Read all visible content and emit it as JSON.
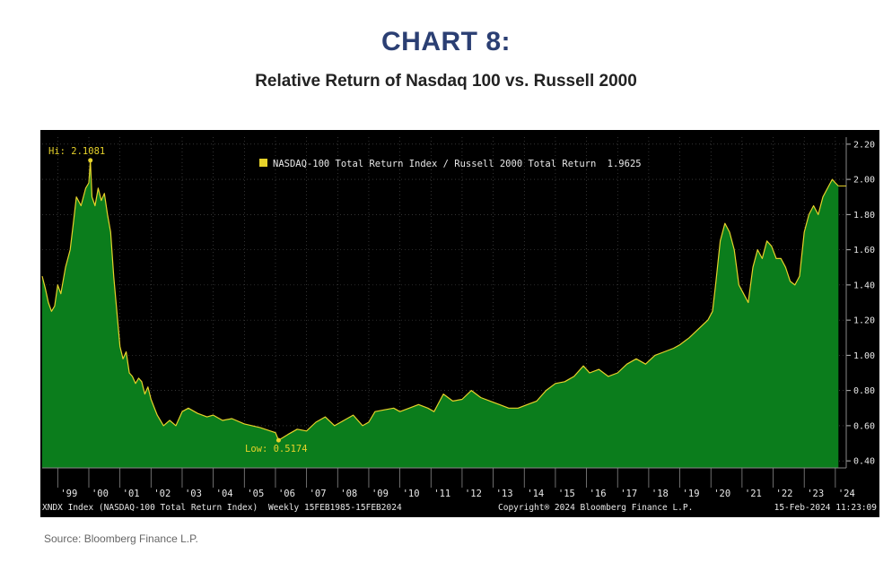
{
  "header": {
    "chart_number": "CHART 8:",
    "title": "Relative Return of Nasdaq 100 vs. Russell 2000"
  },
  "footer": {
    "source": "Source: Bloomberg Finance L.P."
  },
  "bloomberg": {
    "left_info": "XNDX Index (NASDAQ-100 Total Return Index)",
    "period": "Weekly 15FEB1985-15FEB2024",
    "copyright": "Copyright® 2024 Bloomberg Finance L.P.",
    "timestamp": "15-Feb-2024 11:23:09"
  },
  "colors": {
    "background": "#000000",
    "area_fill": "#0b7d1c",
    "line": "#e6d22a",
    "grid": "#555555",
    "text": "#e8e8e8",
    "title": "#2b3f73"
  },
  "chart_data": {
    "type": "area",
    "legend": {
      "label": "NASDAQ-100 Total Return Index / Russell 2000 Total Return",
      "last_value": "1.9625",
      "position": "top-center"
    },
    "annotations": {
      "high_label": "Hi: 2.1081",
      "high": {
        "x": 2000.05,
        "y": 2.1081
      },
      "low_label": "Low: 0.5174",
      "low": {
        "x": 2006.1,
        "y": 0.5174
      }
    },
    "x_range": [
      1998.5,
      2024.35
    ],
    "y_range": [
      0.36,
      2.24
    ],
    "y_ticks": [
      "0.40",
      "0.60",
      "0.80",
      "1.00",
      "1.20",
      "1.40",
      "1.60",
      "1.80",
      "2.00",
      "2.20"
    ],
    "y_tick_values": [
      0.4,
      0.6,
      0.8,
      1.0,
      1.2,
      1.4,
      1.6,
      1.8,
      2.0,
      2.2
    ],
    "x_ticks": [
      "'99",
      "'00",
      "'01",
      "'02",
      "'03",
      "'04",
      "'05",
      "'06",
      "'07",
      "'08",
      "'09",
      "'10",
      "'11",
      "'12",
      "'13",
      "'14",
      "'15",
      "'16",
      "'17",
      "'18",
      "'19",
      "'20",
      "'21",
      "'22",
      "'23",
      "'24"
    ],
    "x_tick_values": [
      1999,
      2000,
      2001,
      2002,
      2003,
      2004,
      2005,
      2006,
      2007,
      2008,
      2009,
      2010,
      2011,
      2012,
      2013,
      2014,
      2015,
      2016,
      2017,
      2018,
      2019,
      2020,
      2021,
      2022,
      2023,
      2024
    ],
    "grid": true,
    "y_axis_side": "right",
    "series": [
      {
        "name": "NASDAQ-100 Total Return Index / Russell 2000 Total Return",
        "x": [
          1998.5,
          1998.6,
          1998.7,
          1998.8,
          1998.9,
          1999.0,
          1999.1,
          1999.25,
          1999.4,
          1999.5,
          1999.6,
          1999.75,
          1999.9,
          2000.0,
          2000.05,
          2000.1,
          2000.2,
          2000.3,
          2000.4,
          2000.5,
          2000.6,
          2000.7,
          2000.8,
          2000.9,
          2001.0,
          2001.1,
          2001.2,
          2001.3,
          2001.4,
          2001.5,
          2001.6,
          2001.7,
          2001.8,
          2001.9,
          2002.0,
          2002.2,
          2002.4,
          2002.6,
          2002.8,
          2003.0,
          2003.2,
          2003.5,
          2003.8,
          2004.0,
          2004.3,
          2004.6,
          2005.0,
          2005.5,
          2006.0,
          2006.1,
          2006.4,
          2006.7,
          2007.0,
          2007.3,
          2007.6,
          2007.9,
          2008.2,
          2008.5,
          2008.8,
          2009.0,
          2009.2,
          2009.5,
          2009.8,
          2010.0,
          2010.3,
          2010.6,
          2010.9,
          2011.1,
          2011.4,
          2011.7,
          2012.0,
          2012.3,
          2012.6,
          2012.9,
          2013.2,
          2013.5,
          2013.8,
          2014.1,
          2014.4,
          2014.7,
          2015.0,
          2015.3,
          2015.6,
          2015.9,
          2016.1,
          2016.4,
          2016.7,
          2017.0,
          2017.3,
          2017.6,
          2017.9,
          2018.2,
          2018.5,
          2018.8,
          2019.0,
          2019.3,
          2019.6,
          2019.9,
          2020.05,
          2020.15,
          2020.3,
          2020.45,
          2020.6,
          2020.75,
          2020.9,
          2021.05,
          2021.2,
          2021.35,
          2021.5,
          2021.65,
          2021.8,
          2021.95,
          2022.1,
          2022.25,
          2022.4,
          2022.55,
          2022.7,
          2022.85,
          2023.0,
          2023.15,
          2023.3,
          2023.45,
          2023.6,
          2023.75,
          2023.9,
          2024.0,
          2024.1
        ],
        "values": [
          1.45,
          1.38,
          1.3,
          1.25,
          1.28,
          1.4,
          1.35,
          1.5,
          1.6,
          1.75,
          1.9,
          1.85,
          1.95,
          1.98,
          2.1081,
          1.9,
          1.85,
          1.95,
          1.88,
          1.92,
          1.8,
          1.7,
          1.45,
          1.25,
          1.05,
          0.98,
          1.02,
          0.9,
          0.88,
          0.84,
          0.87,
          0.85,
          0.78,
          0.82,
          0.75,
          0.66,
          0.6,
          0.63,
          0.6,
          0.68,
          0.7,
          0.67,
          0.65,
          0.66,
          0.63,
          0.64,
          0.61,
          0.59,
          0.56,
          0.5174,
          0.55,
          0.58,
          0.57,
          0.62,
          0.65,
          0.6,
          0.63,
          0.66,
          0.6,
          0.62,
          0.68,
          0.69,
          0.7,
          0.68,
          0.7,
          0.72,
          0.7,
          0.68,
          0.78,
          0.74,
          0.75,
          0.8,
          0.76,
          0.74,
          0.72,
          0.7,
          0.7,
          0.72,
          0.74,
          0.8,
          0.84,
          0.85,
          0.88,
          0.94,
          0.9,
          0.92,
          0.88,
          0.9,
          0.95,
          0.98,
          0.95,
          1.0,
          1.02,
          1.04,
          1.06,
          1.1,
          1.15,
          1.2,
          1.25,
          1.4,
          1.65,
          1.75,
          1.7,
          1.6,
          1.4,
          1.35,
          1.3,
          1.5,
          1.6,
          1.55,
          1.65,
          1.62,
          1.55,
          1.55,
          1.5,
          1.42,
          1.4,
          1.45,
          1.7,
          1.8,
          1.85,
          1.8,
          1.9,
          1.95,
          2.0,
          1.98,
          1.9625
        ]
      }
    ]
  }
}
